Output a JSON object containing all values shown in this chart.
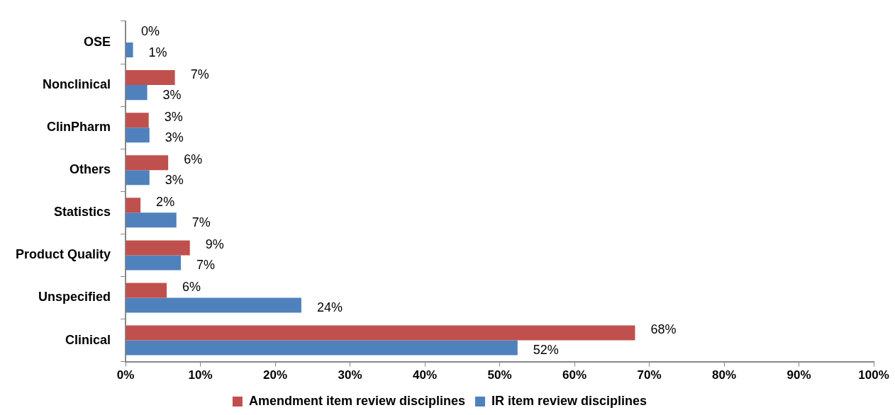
{
  "chart_data": {
    "type": "bar",
    "orientation": "horizontal",
    "categories": [
      "OSE",
      "Nonclinical",
      "ClinPharm",
      "Others",
      "Statistics",
      "Product Quality",
      "Unspecified",
      "Clinical"
    ],
    "series": [
      {
        "name": "Amendment item review disciplines",
        "color": "#c0504d",
        "values": [
          0,
          6.6,
          3.1,
          5.7,
          2.0,
          8.6,
          5.5,
          68.1
        ],
        "value_labels": [
          "0%",
          "7%",
          "3%",
          "6%",
          "2%",
          "9%",
          "6%",
          "68%"
        ]
      },
      {
        "name": "IR item review disciplines",
        "color": "#4f81bd",
        "values": [
          1.0,
          2.9,
          3.2,
          3.2,
          6.8,
          7.4,
          23.5,
          52.4
        ],
        "value_labels": [
          "1%",
          "3%",
          "3%",
          "3%",
          "7%",
          "7%",
          "24%",
          "52%"
        ]
      }
    ],
    "xlim": [
      0,
      100
    ],
    "xticks": [
      {
        "value": 0,
        "label": "0%"
      },
      {
        "value": 10,
        "label": "10%"
      },
      {
        "value": 20,
        "label": "20%"
      },
      {
        "value": 30,
        "label": "30%"
      },
      {
        "value": 40,
        "label": "40%"
      },
      {
        "value": 50,
        "label": "50%"
      },
      {
        "value": 60,
        "label": "60%"
      },
      {
        "value": 70,
        "label": "70%"
      },
      {
        "value": 80,
        "label": "80%"
      },
      {
        "value": 90,
        "label": "90%"
      },
      {
        "value": 100,
        "label": "100%"
      }
    ],
    "grid": false,
    "legend": "bottom"
  }
}
